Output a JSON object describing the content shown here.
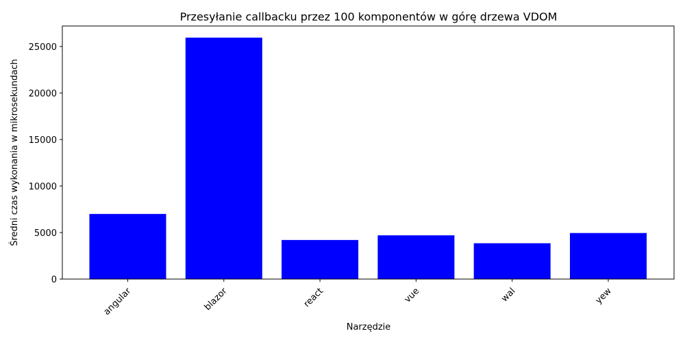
{
  "chart_data": {
    "type": "bar",
    "title": "Przesyłanie callbacku przez 100 komponentów w górę drzewa VDOM",
    "xlabel": "Narzędzie",
    "ylabel": "Średni czas wykonania w mikrosekundach",
    "categories": [
      "angular",
      "blazor",
      "react",
      "vue",
      "wal",
      "yew"
    ],
    "values": [
      7000,
      25950,
      4200,
      4700,
      3850,
      4950
    ],
    "ylim": [
      0,
      27200
    ],
    "yticks": [
      0,
      5000,
      10000,
      15000,
      20000,
      25000
    ],
    "bar_color": "#0000ff",
    "grid": false,
    "x_tick_rotation": 45
  }
}
